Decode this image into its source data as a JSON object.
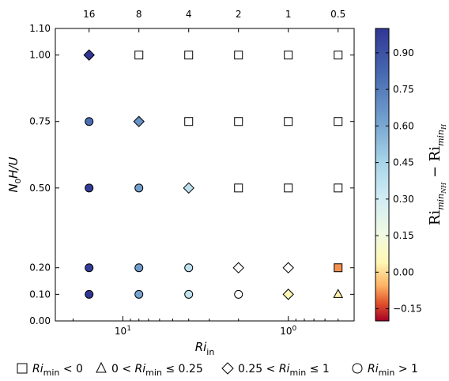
{
  "chart_data": {
    "type": "scatter",
    "xlabel": "Ri_in",
    "xlabel_main": "Ri",
    "xlabel_sub": "in",
    "ylabel": "N0H/U",
    "x_scale": "log",
    "x_direction": "reversed",
    "xlim": [
      25.6,
      0.4
    ],
    "ylim": [
      0.0,
      1.1
    ],
    "x_bottom_ticks": [
      {
        "value": 10,
        "label": "10",
        "exp": "1"
      },
      {
        "value": 1,
        "label": "10",
        "exp": "0"
      }
    ],
    "x_top_ticks": [
      "16",
      "8",
      "4",
      "2",
      "1",
      "0.5"
    ],
    "x_top_values": [
      16,
      8,
      4,
      2,
      1,
      0.5
    ],
    "y_ticks": [
      {
        "value": 0.0,
        "label": "0.00"
      },
      {
        "value": 0.1,
        "label": "0.10"
      },
      {
        "value": 0.2,
        "label": "0.20"
      },
      {
        "value": 0.5,
        "label": "0.50"
      },
      {
        "value": 0.75,
        "label": "0.75"
      },
      {
        "value": 1.0,
        "label": "1.00"
      },
      {
        "value": 1.1,
        "label": "1.10"
      }
    ],
    "points": [
      {
        "x": 16,
        "y": 1.0,
        "marker": "diamond",
        "c": 1.0
      },
      {
        "x": 8,
        "y": 1.0,
        "marker": "square",
        "c": null
      },
      {
        "x": 4,
        "y": 1.0,
        "marker": "square",
        "c": null
      },
      {
        "x": 2,
        "y": 1.0,
        "marker": "square",
        "c": null
      },
      {
        "x": 1,
        "y": 1.0,
        "marker": "square",
        "c": null
      },
      {
        "x": 0.5,
        "y": 1.0,
        "marker": "square",
        "c": null
      },
      {
        "x": 16,
        "y": 0.75,
        "marker": "circle",
        "c": 0.8
      },
      {
        "x": 8,
        "y": 0.75,
        "marker": "diamond",
        "c": 0.68
      },
      {
        "x": 4,
        "y": 0.75,
        "marker": "square",
        "c": null
      },
      {
        "x": 2,
        "y": 0.75,
        "marker": "square",
        "c": null
      },
      {
        "x": 1,
        "y": 0.75,
        "marker": "square",
        "c": null
      },
      {
        "x": 0.5,
        "y": 0.75,
        "marker": "square",
        "c": null
      },
      {
        "x": 16,
        "y": 0.5,
        "marker": "circle",
        "c": 0.98
      },
      {
        "x": 8,
        "y": 0.5,
        "marker": "circle",
        "c": 0.63
      },
      {
        "x": 4,
        "y": 0.5,
        "marker": "diamond",
        "c": 0.38
      },
      {
        "x": 2,
        "y": 0.5,
        "marker": "square",
        "c": null
      },
      {
        "x": 1,
        "y": 0.5,
        "marker": "square",
        "c": null
      },
      {
        "x": 0.5,
        "y": 0.5,
        "marker": "square",
        "c": null
      },
      {
        "x": 16,
        "y": 0.2,
        "marker": "circle",
        "c": 0.98
      },
      {
        "x": 8,
        "y": 0.2,
        "marker": "circle",
        "c": 0.64
      },
      {
        "x": 4,
        "y": 0.2,
        "marker": "circle",
        "c": 0.37
      },
      {
        "x": 2,
        "y": 0.2,
        "marker": "diamond",
        "c": null
      },
      {
        "x": 1,
        "y": 0.2,
        "marker": "diamond",
        "c": null
      },
      {
        "x": 0.5,
        "y": 0.2,
        "marker": "square",
        "c": -0.08
      },
      {
        "x": 16,
        "y": 0.1,
        "marker": "circle",
        "c": 1.0
      },
      {
        "x": 8,
        "y": 0.1,
        "marker": "circle",
        "c": 0.62
      },
      {
        "x": 4,
        "y": 0.1,
        "marker": "circle",
        "c": 0.36
      },
      {
        "x": 2,
        "y": 0.1,
        "marker": "circle",
        "c": null
      },
      {
        "x": 1,
        "y": 0.1,
        "marker": "diamond",
        "c": 0.04
      },
      {
        "x": 0.5,
        "y": 0.1,
        "marker": "triangle",
        "c": 0.03
      }
    ],
    "colorbar": {
      "label_main": "Ri",
      "label_sub1": "min",
      "label_sub1b": "NH",
      "label_minus": "−",
      "label_sub2": "min",
      "label_sub2b": "H",
      "min": -0.2,
      "max": 1.0,
      "ticks": [
        "0.90",
        "0.75",
        "0.60",
        "0.45",
        "0.30",
        "0.15",
        "0.00",
        "−0.15"
      ],
      "tick_values": [
        0.9,
        0.75,
        0.6,
        0.45,
        0.3,
        0.15,
        0.0,
        -0.15
      ],
      "colormap": "RdYlBu"
    },
    "legend": {
      "placement": "bottom",
      "items": [
        {
          "marker": "square",
          "parts": [
            "",
            "Ri",
            "min",
            " < 0"
          ]
        },
        {
          "marker": "triangle",
          "parts": [
            "0 < ",
            "Ri",
            "min",
            " ≤ 0.25"
          ]
        },
        {
          "marker": "diamond",
          "parts": [
            "0.25 < ",
            "Ri",
            "min",
            " ≤ 1"
          ]
        },
        {
          "marker": "circle",
          "parts": [
            "",
            "Ri",
            "min",
            " > 1"
          ]
        }
      ]
    }
  }
}
